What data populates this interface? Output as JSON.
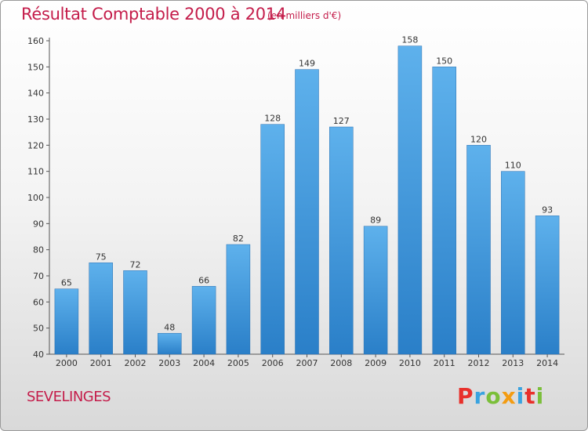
{
  "header": {
    "title": "Résultat Comptable 2000 à 2014",
    "subtitle": "(en milliers d'€)"
  },
  "footer": {
    "commune": "SEVELINGES",
    "logo_letters": [
      "P",
      "r",
      "o",
      "x",
      "i",
      "t",
      "i"
    ],
    "logo_colors": [
      "#e8302b",
      "#3aa3e0",
      "#7bbf3a",
      "#f39c12",
      "#3aa3e0",
      "#e8302b",
      "#7bbf3a"
    ]
  },
  "chart_data": {
    "type": "bar",
    "title": "Résultat Comptable 2000 à 2014",
    "subtitle": "(en milliers d'€)",
    "categories": [
      "2000",
      "2001",
      "2002",
      "2003",
      "2004",
      "2005",
      "2006",
      "2007",
      "2008",
      "2009",
      "2010",
      "2011",
      "2012",
      "2013",
      "2014"
    ],
    "values": [
      65,
      75,
      72,
      48,
      66,
      82,
      128,
      149,
      127,
      89,
      158,
      150,
      120,
      110,
      93
    ],
    "xlabel": "",
    "ylabel": "",
    "ylim": [
      40,
      160
    ],
    "yticks": [
      40,
      50,
      60,
      70,
      80,
      90,
      100,
      110,
      120,
      130,
      140,
      150,
      160
    ],
    "grid": false,
    "bar_color": "#3a96dc"
  }
}
